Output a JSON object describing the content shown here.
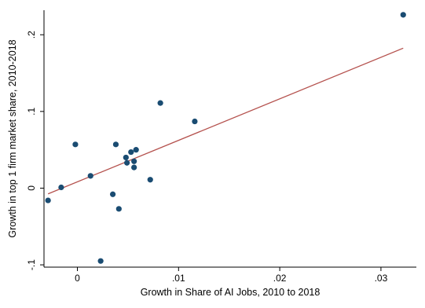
{
  "chart_data": {
    "type": "scatter",
    "xlabel": "Growth in Share of AI Jobs, 2010 to 2018",
    "ylabel": "Growth in top 1 firm market share, 2010-2018",
    "xlim": [
      -0.0033,
      0.0335
    ],
    "ylim": [
      -0.103,
      0.232
    ],
    "x_ticks": [
      {
        "value": 0,
        "label": "0"
      },
      {
        "value": 0.01,
        "label": ".01"
      },
      {
        "value": 0.02,
        "label": ".02"
      },
      {
        "value": 0.03,
        "label": ".03"
      }
    ],
    "y_ticks": [
      {
        "value": -0.1,
        "label": "-.1"
      },
      {
        "value": 0,
        "label": "0"
      },
      {
        "value": 0.1,
        "label": ".1"
      },
      {
        "value": 0.2,
        "label": ".2"
      }
    ],
    "grid": false,
    "legend": "none",
    "points": [
      {
        "x": -0.0029,
        "y": -0.016
      },
      {
        "x": -0.0016,
        "y": 0.001
      },
      {
        "x": -0.0002,
        "y": 0.057
      },
      {
        "x": 0.0013,
        "y": 0.016
      },
      {
        "x": 0.0023,
        "y": -0.095
      },
      {
        "x": 0.0035,
        "y": -0.008
      },
      {
        "x": 0.0038,
        "y": 0.057
      },
      {
        "x": 0.0041,
        "y": -0.027
      },
      {
        "x": 0.0048,
        "y": 0.04
      },
      {
        "x": 0.0049,
        "y": 0.033
      },
      {
        "x": 0.0053,
        "y": 0.047
      },
      {
        "x": 0.0056,
        "y": 0.035
      },
      {
        "x": 0.0056,
        "y": 0.027
      },
      {
        "x": 0.0058,
        "y": 0.05
      },
      {
        "x": 0.0072,
        "y": 0.011
      },
      {
        "x": 0.0082,
        "y": 0.111
      },
      {
        "x": 0.0116,
        "y": 0.087
      },
      {
        "x": 0.0322,
        "y": 0.226
      }
    ],
    "fit_line": {
      "x": [
        -0.0029,
        0.0322
      ],
      "y": [
        -0.0075,
        0.1825
      ]
    },
    "colors": {
      "points": "#1a4c72",
      "fit_line": "#b5524e",
      "axis": "#000000"
    }
  }
}
